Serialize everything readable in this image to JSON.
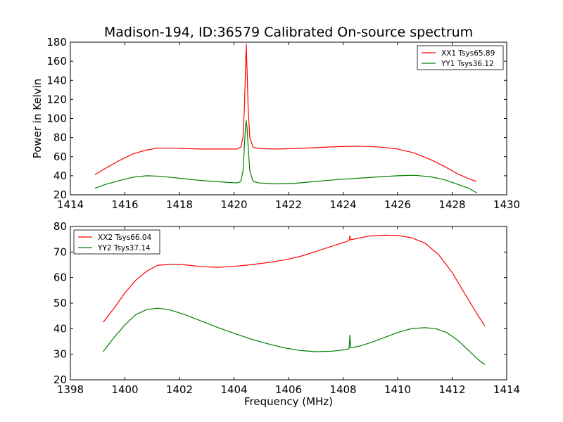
{
  "figure": {
    "title": "Madison-194, ID:36579 Calibrated On-source spectrum"
  },
  "chart_data": [
    {
      "type": "line",
      "title": "Madison-194, ID:36579 Calibrated On-source spectrum",
      "xlabel": "",
      "ylabel": "Power in Kelvin",
      "xlim": [
        1414,
        1430
      ],
      "ylim": [
        20,
        180
      ],
      "xticks": [
        "1414",
        "1416",
        "1418",
        "1420",
        "1422",
        "1424",
        "1426",
        "1428",
        "1430"
      ],
      "yticks": [
        "20",
        "40",
        "60",
        "80",
        "100",
        "120",
        "140",
        "160",
        "180"
      ],
      "legend": "top-right",
      "grid": false,
      "series": [
        {
          "name": "XX1 Tsys65.89",
          "color": "#ff0000",
          "x": [
            1414.9,
            1415.3,
            1415.8,
            1416.3,
            1416.8,
            1417.2,
            1417.7,
            1418.2,
            1418.8,
            1419.3,
            1419.8,
            1420.1,
            1420.25,
            1420.33,
            1420.38,
            1420.42,
            1420.45,
            1420.48,
            1420.52,
            1420.58,
            1420.7,
            1420.9,
            1421.5,
            1422.2,
            1423.0,
            1423.8,
            1424.6,
            1425.4,
            1426.0,
            1426.6,
            1427.2,
            1427.7,
            1428.2,
            1428.6,
            1428.9
          ],
          "y": [
            41,
            48,
            56,
            63,
            67,
            69,
            69,
            68.5,
            68,
            68,
            68,
            68,
            70,
            80,
            110,
            150,
            178,
            150,
            110,
            80,
            70,
            68.5,
            68,
            68.5,
            69.5,
            70.5,
            71,
            70,
            68,
            64,
            57,
            50,
            42,
            37,
            34
          ]
        },
        {
          "name": "YY1 Tsys36.12",
          "color": "#008000",
          "x": [
            1414.9,
            1415.3,
            1415.8,
            1416.3,
            1416.8,
            1417.3,
            1417.8,
            1418.3,
            1418.8,
            1419.3,
            1419.8,
            1420.1,
            1420.25,
            1420.33,
            1420.38,
            1420.42,
            1420.45,
            1420.48,
            1420.52,
            1420.58,
            1420.7,
            1420.9,
            1421.5,
            1422.2,
            1423.0,
            1423.8,
            1424.6,
            1425.4,
            1426.0,
            1426.6,
            1427.2,
            1427.7,
            1428.2,
            1428.6,
            1428.9
          ],
          "y": [
            27,
            31,
            35,
            38.5,
            40,
            39.5,
            38,
            36.5,
            35,
            34,
            33,
            32.5,
            34,
            45,
            70,
            90,
            98,
            90,
            70,
            45,
            34,
            32.5,
            31.5,
            32,
            34,
            36,
            37.5,
            39,
            40,
            40.5,
            39,
            36,
            31,
            27,
            22
          ]
        }
      ]
    },
    {
      "type": "line",
      "title": "",
      "xlabel": "Frequency (MHz)",
      "ylabel": "",
      "xlim": [
        1398,
        1414
      ],
      "ylim": [
        20,
        80
      ],
      "xticks": [
        "1398",
        "1400",
        "1402",
        "1404",
        "1406",
        "1408",
        "1410",
        "1412",
        "1414"
      ],
      "yticks": [
        "20",
        "30",
        "40",
        "50",
        "60",
        "70",
        "80"
      ],
      "legend": "top-left",
      "grid": false,
      "series": [
        {
          "name": "XX2 Tsys66.04",
          "color": "#ff0000",
          "x": [
            1399.2,
            1399.6,
            1400.0,
            1400.4,
            1400.8,
            1401.2,
            1401.7,
            1402.2,
            1402.8,
            1403.4,
            1404.0,
            1404.6,
            1405.2,
            1405.8,
            1406.4,
            1407.0,
            1407.6,
            1408.1,
            1408.22,
            1408.25,
            1408.28,
            1408.6,
            1409.0,
            1409.5,
            1410.0,
            1410.5,
            1411.0,
            1411.5,
            1412.0,
            1412.5,
            1412.9,
            1413.2
          ],
          "y": [
            42.5,
            48,
            54,
            59,
            62.5,
            64.8,
            65.2,
            65,
            64.3,
            64,
            64.4,
            65,
            65.8,
            66.8,
            68.2,
            70.2,
            72.3,
            74,
            74.5,
            76.3,
            74.8,
            75.5,
            76.3,
            76.6,
            76.5,
            75.6,
            73.5,
            69,
            62,
            53,
            46,
            41
          ]
        },
        {
          "name": "YY2 Tsys37.14",
          "color": "#008000",
          "x": [
            1399.2,
            1399.6,
            1400.0,
            1400.4,
            1400.8,
            1401.2,
            1401.6,
            1402.2,
            1402.8,
            1403.4,
            1404.0,
            1404.6,
            1405.2,
            1405.8,
            1406.4,
            1407.0,
            1407.6,
            1408.1,
            1408.22,
            1408.25,
            1408.28,
            1408.6,
            1409.0,
            1409.5,
            1410.0,
            1410.5,
            1411.0,
            1411.4,
            1411.8,
            1412.2,
            1412.6,
            1413.0,
            1413.2
          ],
          "y": [
            31,
            36.5,
            41.5,
            45.5,
            47.5,
            48,
            47.5,
            45.5,
            43,
            40.5,
            38.2,
            36,
            34.2,
            32.6,
            31.5,
            31,
            31.2,
            31.8,
            32.2,
            37.5,
            32.5,
            33.2,
            34.5,
            36.5,
            38.5,
            40,
            40.4,
            40,
            38.5,
            35.5,
            31.5,
            27.5,
            26
          ]
        }
      ]
    }
  ]
}
